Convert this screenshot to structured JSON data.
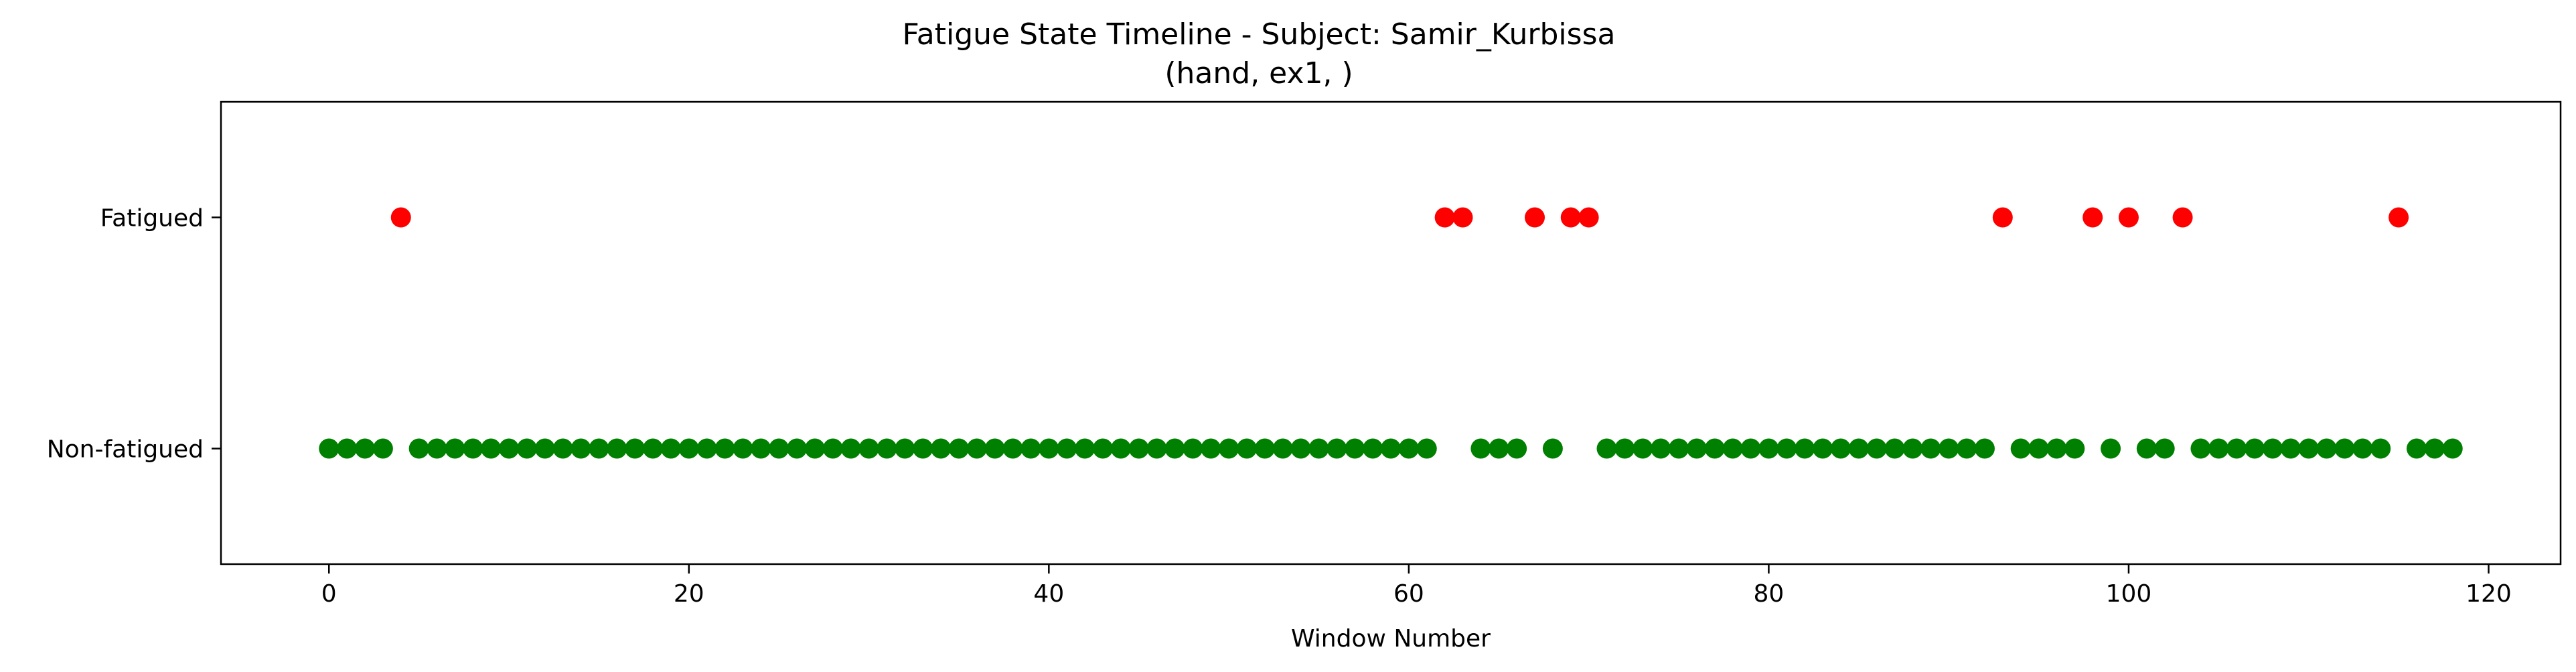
{
  "chart_data": {
    "type": "scatter",
    "title": "Fatigue State Timeline - Subject: Samir_Kurbissa",
    "subtitle": "(hand, ex1, )",
    "xlabel": "Window Number",
    "ylabel": "",
    "xlim": [
      -6,
      124
    ],
    "ylim": [
      -0.5,
      1.5
    ],
    "x_ticks": [
      0,
      20,
      40,
      60,
      80,
      100,
      120
    ],
    "y_tick_labels": [
      "Non-fatigued",
      "Fatigued"
    ],
    "grid": false,
    "colors": {
      "Fatigued": "#ff0000",
      "Non-fatigued": "#008000"
    },
    "series": [
      {
        "state": 1,
        "color": "#ff0000",
        "x": [
          4,
          62,
          63,
          67,
          69,
          70,
          93,
          98,
          100,
          103,
          115
        ]
      },
      {
        "state": 0,
        "color": "#008000",
        "x": [
          0,
          1,
          2,
          3,
          5,
          6,
          7,
          8,
          9,
          10,
          11,
          12,
          13,
          14,
          15,
          16,
          17,
          18,
          19,
          20,
          21,
          22,
          23,
          24,
          25,
          26,
          27,
          28,
          29,
          30,
          31,
          32,
          33,
          34,
          35,
          36,
          37,
          38,
          39,
          40,
          41,
          42,
          43,
          44,
          45,
          46,
          47,
          48,
          49,
          50,
          51,
          52,
          53,
          54,
          55,
          56,
          57,
          58,
          59,
          60,
          61,
          64,
          65,
          66,
          68,
          71,
          72,
          73,
          74,
          75,
          76,
          77,
          78,
          79,
          80,
          81,
          82,
          83,
          84,
          85,
          86,
          87,
          88,
          89,
          90,
          91,
          92,
          94,
          95,
          96,
          97,
          99,
          101,
          102,
          104,
          105,
          106,
          107,
          108,
          109,
          110,
          111,
          112,
          113,
          114,
          116,
          117,
          118
        ]
      }
    ]
  }
}
